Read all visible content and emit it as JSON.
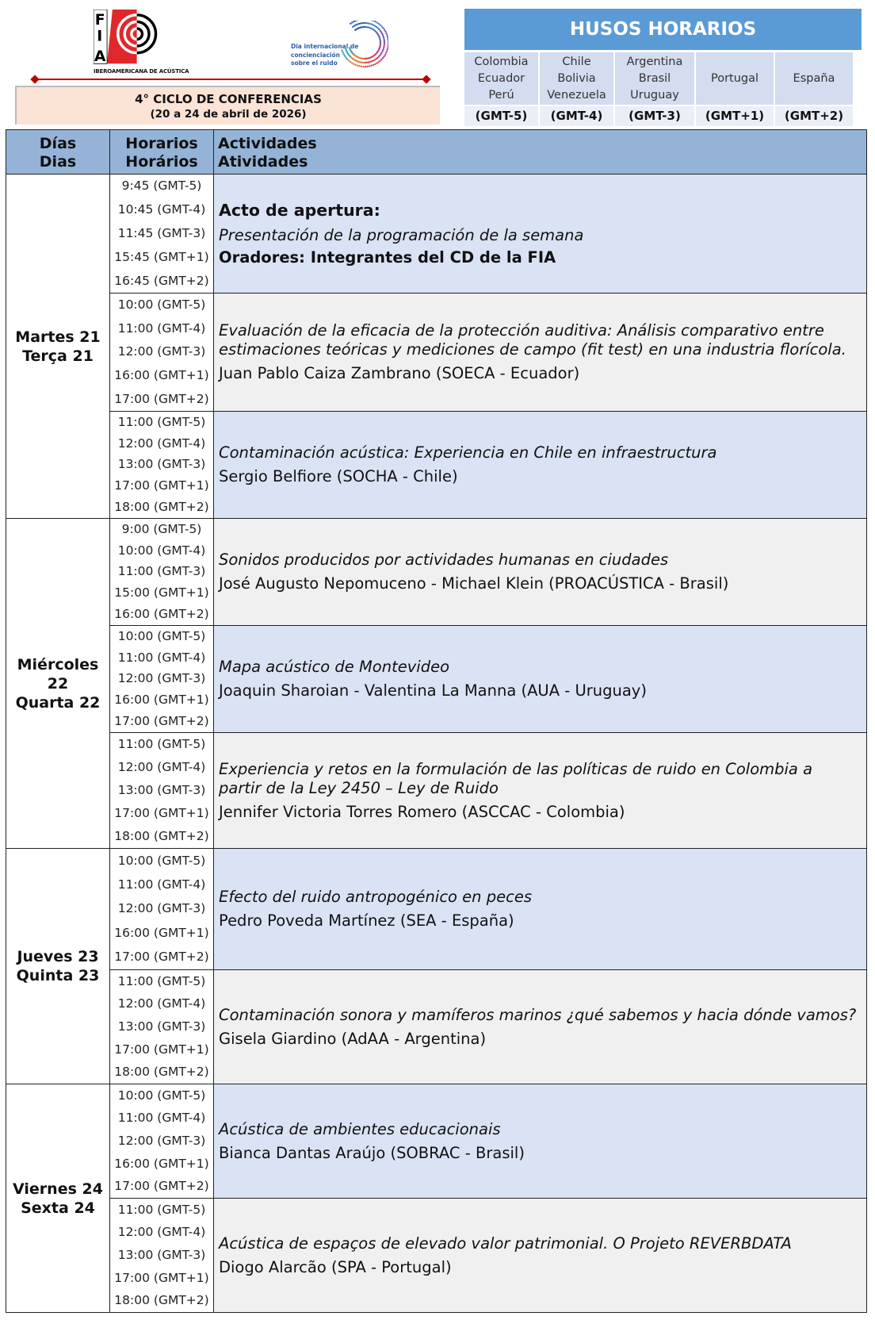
{
  "header": {
    "fia_logo_text": "FIA",
    "fia_subtitle": "IBEROAMERICANA DE ACÚSTICA",
    "dia_logo_text": [
      "Dia internacional de",
      "concienciación",
      "sobre el ruido"
    ],
    "title": "4° CICLO DE CONFERENCIAS",
    "dates": "(20 a 24 de abril de 2026)"
  },
  "timezones": {
    "title": "HUSOS HORARIOS",
    "zones": [
      {
        "countries": "Colombia\nEcuador\nPerú",
        "gmt": "(GMT-5)"
      },
      {
        "countries": "Chile\nBolivia\nVenezuela",
        "gmt": "(GMT-4)"
      },
      {
        "countries": "Argentina\nBrasil\nUruguay",
        "gmt": "(GMT-3)"
      },
      {
        "countries": "Portugal",
        "gmt": "(GMT+1)"
      },
      {
        "countries": "España",
        "gmt": "(GMT+2)"
      }
    ]
  },
  "table": {
    "headers": {
      "days": "Días",
      "days_pt": "Dias",
      "times": "Horarios",
      "times_pt": "Horários",
      "activities": "Actividades",
      "activities_pt": "Atividades"
    },
    "days": [
      "Martes 21",
      "Terça 21",
      "Miércoles 22",
      "Quarta 22",
      "Jueves 23",
      "Quinta 23",
      "Viernes 24",
      "Sexta 24"
    ],
    "rows": [
      {
        "times": [
          "9:45 (GMT-5)",
          "10:45 (GMT-4)",
          "11:45 (GMT-3)",
          "15:45 (GMT+1)",
          "16:45 (GMT+2)"
        ],
        "heading": "Acto de apertura:",
        "title": "Presentación de la programación de la semana",
        "speakers": "Oradores: Integrantes del CD de la FIA"
      },
      {
        "times": [
          "10:00 (GMT-5)",
          "11:00 (GMT-4)",
          "12:00 (GMT-3)",
          "16:00 (GMT+1)",
          "17:00 (GMT+2)"
        ],
        "title": "Evaluación de la eficacia de la protección auditiva: Análisis comparativo entre estimaciones teóricas y mediciones de campo (fit test) en una industria florícola.",
        "speakers": "Juan Pablo Caiza Zambrano (SOECA - Ecuador)"
      },
      {
        "times": [
          "11:00 (GMT-5)",
          "12:00 (GMT-4)",
          "13:00 (GMT-3)",
          "17:00 (GMT+1)",
          "18:00 (GMT+2)"
        ],
        "title": "Contaminación acústica: Experiencia en Chile en infraestructura",
        "speakers": "Sergio Belfiore (SOCHA - Chile)"
      },
      {
        "times": [
          "9:00 (GMT-5)",
          "10:00 (GMT-4)",
          "11:00 (GMT-3)",
          "15:00 (GMT+1)",
          "16:00 (GMT+2)"
        ],
        "title": "Sonidos producidos por actividades humanas en ciudades",
        "speakers": "José Augusto Nepomuceno - Michael Klein (PROACÚSTICA - Brasil)"
      },
      {
        "times": [
          "10:00 (GMT-5)",
          "11:00 (GMT-4)",
          "12:00 (GMT-3)",
          "16:00 (GMT+1)",
          "17:00 (GMT+2)"
        ],
        "title": "Mapa acústico de Montevideo",
        "speakers": "Joaquin Sharoian - Valentina La Manna (AUA - Uruguay)"
      },
      {
        "times": [
          "11:00 (GMT-5)",
          "12:00 (GMT-4)",
          "13:00 (GMT-3)",
          "17:00 (GMT+1)",
          "18:00 (GMT+2)"
        ],
        "title": "Experiencia y retos en la formulación de las políticas de ruido en Colombia a partir de la Ley 2450 – Ley de Ruido",
        "speakers": "Jennifer Victoria Torres Romero (ASCCAC - Colombia)"
      },
      {
        "times": [
          "10:00 (GMT-5)",
          "11:00 (GMT-4)",
          "12:00 (GMT-3)",
          "16:00 (GMT+1)",
          "17:00 (GMT+2)"
        ],
        "title": "Efecto del ruido antropogénico en peces",
        "speakers": "Pedro Poveda Martínez (SEA - España)"
      },
      {
        "times": [
          "11:00 (GMT-5)",
          "12:00 (GMT-4)",
          "13:00 (GMT-3)",
          "17:00 (GMT+1)",
          "18:00 (GMT+2)"
        ],
        "title": "Contaminación sonora y mamíferos marinos ¿qué sabemos y hacia dónde vamos?",
        "speakers": "Gisela Giardino (AdAA - Argentina)"
      },
      {
        "times": [
          "10:00 (GMT-5)",
          "11:00 (GMT-4)",
          "12:00 (GMT-3)",
          "16:00 (GMT+1)",
          "17:00 (GMT+2)"
        ],
        "title": "Acústica de ambientes educacionais",
        "speakers": "Bianca Dantas Araújo (SOBRAC - Brasil)"
      },
      {
        "times": [
          "11:00 (GMT-5)",
          "12:00 (GMT-4)",
          "13:00 (GMT-3)",
          "17:00 (GMT+1)",
          "18:00 (GMT+2)"
        ],
        "title": "Acústica de espaços de elevado valor patrimonial. O Projeto REVERBDATA",
        "speakers": "Diogo Alarcão (SPA - Portugal)"
      }
    ]
  },
  "colors": {
    "header_blue": "#5b9bd5",
    "table_header": "#95b3d7",
    "row_blue": "#dae3f3",
    "row_gray": "#f0f0f0",
    "title_bg": "#fbe3d6",
    "accent_red": "#c00000"
  }
}
